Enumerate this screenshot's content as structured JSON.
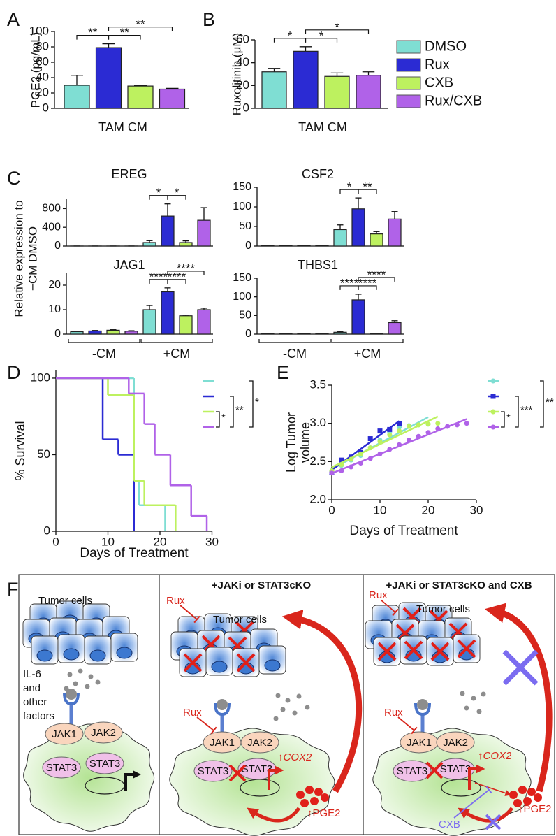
{
  "panel_labels": [
    "A",
    "B",
    "C",
    "D",
    "E",
    "F"
  ],
  "legend": [
    {
      "name": "DMSO",
      "color": "#7fded3"
    },
    {
      "name": "Rux",
      "color": "#2b2bd3"
    },
    {
      "name": "CXB",
      "color": "#bdf15f"
    },
    {
      "name": "Rux/CXB",
      "color": "#b062e8"
    }
  ],
  "panel_c_y_label": [
    "Relative expression to",
    "−CM DMSO"
  ],
  "chart_data": [
    {
      "type": "bar",
      "x_label": "TAM CM",
      "y_label": "PGE2 (pg/mL)",
      "values": [
        30,
        79,
        29,
        25
      ],
      "errors": [
        13,
        5,
        1,
        1
      ],
      "ylim": [
        0,
        100
      ],
      "yticks": [
        0,
        20,
        40,
        60,
        80,
        100
      ],
      "comparisons": [
        {
          "bars": [
            0,
            1
          ],
          "label": "**"
        },
        {
          "bars": [
            1,
            2
          ],
          "label": "**"
        },
        {
          "bars": [
            1,
            3
          ],
          "label": "**"
        }
      ]
    },
    {
      "type": "bar",
      "x_label": "TAM CM",
      "y_label": "Ruxolitinib (μM)",
      "values": [
        32,
        50,
        28,
        29
      ],
      "errors": [
        3,
        4,
        3,
        3
      ],
      "ylim": [
        0,
        60
      ],
      "yticks": [
        0,
        20,
        40,
        60
      ],
      "comparisons": [
        {
          "bars": [
            0,
            1
          ],
          "label": "*"
        },
        {
          "bars": [
            1,
            2
          ],
          "label": "*"
        },
        {
          "bars": [
            1,
            3
          ],
          "label": "*"
        }
      ]
    },
    {
      "type": "bar",
      "title": "EREG",
      "values": [
        1,
        1,
        1,
        1,
        75,
        640,
        75,
        550
      ],
      "errors": [
        0,
        0,
        0,
        0,
        40,
        260,
        35,
        270
      ],
      "ylim": [
        0,
        1000
      ],
      "yticks": [
        0,
        400,
        800
      ],
      "comparisons": [
        {
          "bars": [
            4,
            5
          ],
          "label": "*"
        },
        {
          "bars": [
            5,
            6
          ],
          "label": "*"
        }
      ]
    },
    {
      "type": "bar",
      "title": "CSF2",
      "values": [
        1,
        1,
        1,
        1,
        42,
        95,
        31,
        69
      ],
      "errors": [
        0,
        0,
        0,
        0,
        12,
        28,
        6,
        19
      ],
      "ylim": [
        0,
        150
      ],
      "yticks": [
        0,
        50,
        100,
        150
      ],
      "comparisons": [
        {
          "bars": [
            4,
            5
          ],
          "label": "*"
        },
        {
          "bars": [
            5,
            6
          ],
          "label": "**"
        }
      ]
    },
    {
      "type": "bar",
      "title": "JAG1",
      "values": [
        1,
        1.3,
        1.6,
        1.2,
        10,
        17.3,
        7.5,
        10
      ],
      "errors": [
        0.2,
        0.2,
        0.2,
        0.2,
        1.7,
        1.6,
        0.3,
        0.6
      ],
      "ylim": [
        0,
        25
      ],
      "yticks": [
        0,
        10,
        20
      ],
      "groups": [
        "-CM",
        "+CM"
      ],
      "comparisons": [
        {
          "bars": [
            4,
            5
          ],
          "label": "****"
        },
        {
          "bars": [
            5,
            6
          ],
          "label": "****"
        },
        {
          "bars": [
            5,
            7
          ],
          "label": "****"
        }
      ]
    },
    {
      "type": "bar",
      "title": "THBS1",
      "values": [
        1,
        2,
        1,
        1,
        5,
        92,
        1,
        31
      ],
      "errors": [
        0.3,
        0.5,
        0.3,
        0.3,
        2,
        15,
        0.5,
        5
      ],
      "ylim": [
        0,
        150
      ],
      "yticks": [
        0,
        50,
        100,
        150
      ],
      "groups": [
        "-CM",
        "+CM"
      ],
      "comparisons": [
        {
          "bars": [
            4,
            5
          ],
          "label": "****"
        },
        {
          "bars": [
            5,
            6
          ],
          "label": "****"
        },
        {
          "bars": [
            5,
            7
          ],
          "label": "****"
        }
      ]
    },
    {
      "type": "step",
      "x_label": "Days of Treatment",
      "y_label": "% Survival",
      "xlim": [
        0,
        30
      ],
      "xticks": [
        0,
        10,
        20,
        30
      ],
      "ylim": [
        0,
        105
      ],
      "yticks": [
        0,
        50,
        100
      ],
      "series": [
        {
          "color": "#7fded3",
          "x": [
            0,
            15,
            16,
            21
          ],
          "values": [
            100,
            33,
            17,
            0
          ]
        },
        {
          "color": "#2b2bd3",
          "x": [
            0,
            9,
            12,
            15
          ],
          "values": [
            100,
            60,
            50,
            0
          ]
        },
        {
          "color": "#bdf15f",
          "x": [
            0,
            10,
            15,
            17,
            23
          ],
          "values": [
            100,
            89,
            33,
            17,
            0
          ]
        },
        {
          "color": "#b062e8",
          "x": [
            0,
            14,
            17,
            19,
            22,
            26,
            29
          ],
          "values": [
            100,
            90,
            70,
            50,
            30,
            10,
            0
          ]
        }
      ],
      "comparisons": [
        {
          "series": [
            2,
            3
          ],
          "label": "*"
        },
        {
          "series": [
            1,
            3
          ],
          "label": "**"
        },
        {
          "series": [
            0,
            3
          ],
          "label": "*"
        }
      ]
    },
    {
      "type": "scatter",
      "x_label": "Days of Treatment",
      "y_label": [
        "Log Tumor",
        "volume"
      ],
      "xlim": [
        0,
        30
      ],
      "xticks": [
        0,
        10,
        20,
        30
      ],
      "ylim": [
        2.0,
        3.5
      ],
      "yticks": [
        {
          "value": 2,
          "label": "2.0"
        },
        {
          "value": 2.5,
          "label": "2.5"
        },
        {
          "value": 3,
          "label": "3.0"
        },
        {
          "value": 3.5,
          "label": "3.5"
        }
      ],
      "series": [
        {
          "color": "#7fded3",
          "marker": "circle",
          "x": [
            0,
            2,
            4,
            6,
            8,
            10,
            12,
            14,
            16,
            18,
            20
          ],
          "values": [
            2.38,
            2.45,
            2.52,
            2.58,
            2.68,
            2.78,
            2.88,
            2.95,
            2.97,
            2.98,
            2.99
          ]
        },
        {
          "color": "#2b2bd3",
          "marker": "square",
          "x": [
            0,
            2,
            4,
            6,
            8,
            10,
            12,
            14
          ],
          "values": [
            2.36,
            2.52,
            2.56,
            2.62,
            2.8,
            2.9,
            2.92,
            3.0
          ]
        },
        {
          "color": "#bdf15f",
          "marker": "circle",
          "x": [
            0,
            2,
            4,
            6,
            8,
            10,
            12,
            14,
            16,
            18,
            20,
            22
          ],
          "values": [
            2.38,
            2.46,
            2.53,
            2.6,
            2.68,
            2.76,
            2.85,
            2.9,
            2.96,
            2.98,
            2.99,
            3.0
          ]
        },
        {
          "color": "#b062e8",
          "marker": "circle",
          "x": [
            0,
            2,
            4,
            6,
            8,
            10,
            12,
            14,
            16,
            18,
            20,
            22,
            24,
            26,
            28
          ],
          "values": [
            2.35,
            2.38,
            2.43,
            2.48,
            2.54,
            2.6,
            2.66,
            2.72,
            2.78,
            2.83,
            2.88,
            2.93,
            2.96,
            2.98,
            3.0
          ]
        }
      ],
      "comparisons": [
        {
          "series": [
            2,
            3
          ],
          "label": "*"
        },
        {
          "series": [
            1,
            3
          ],
          "label": "***"
        },
        {
          "series": [
            0,
            3
          ],
          "label": "**"
        }
      ]
    }
  ],
  "figure_f": {
    "panels": [
      {
        "tumor_cells": "Tumor cells",
        "factors": [
          "IL-6",
          "and",
          "other",
          "factors"
        ],
        "jak1": "JAK1",
        "jak2": "JAK2",
        "stat3": [
          "STAT3",
          "STAT3"
        ]
      },
      {
        "title": "+JAKi or STAT3cKO",
        "rux": [
          "Rux",
          "Rux"
        ],
        "tumor_cells": "Tumor cells",
        "jak1": "JAK1",
        "jak2": "JAK2",
        "stat3": [
          "STAT3",
          "STAT3"
        ],
        "cox2": "↑COX2",
        "pge2": "↑PGE2"
      },
      {
        "title": "+JAKi or STAT3cKO and CXB",
        "rux": [
          "Rux",
          "Rux"
        ],
        "tumor_cells": "Tumor cells",
        "jak1": "JAK1",
        "jak2": "JAK2",
        "stat3": [
          "STAT3",
          "STAT3"
        ],
        "cox2": "↑COX2",
        "pge2": "↑PGE2",
        "cxb": "CXB"
      }
    ]
  }
}
